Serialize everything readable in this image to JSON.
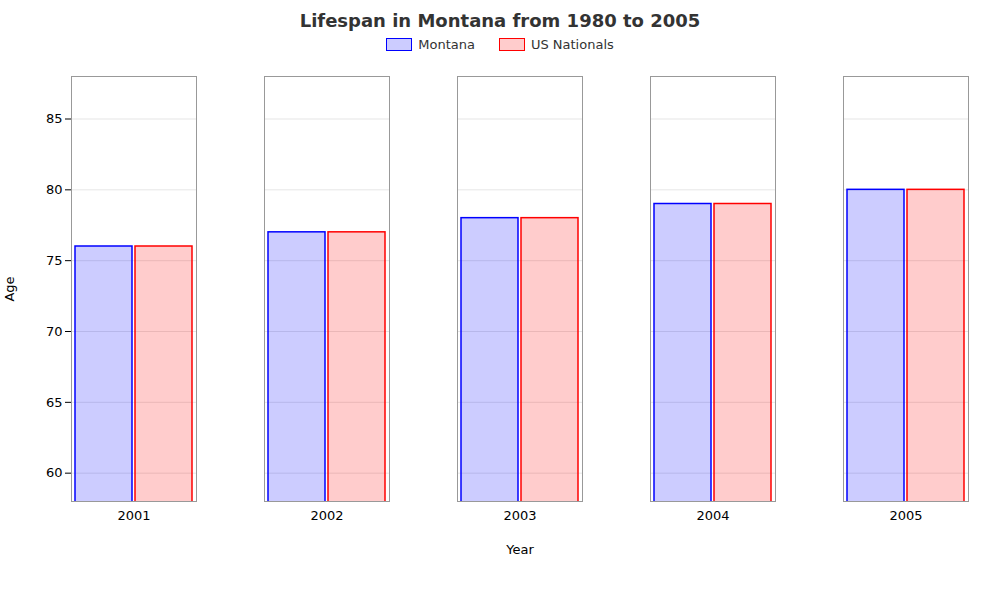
{
  "chart_data": {
    "type": "bar",
    "title": "Lifespan in Montana from 1980 to 2005",
    "xlabel": "Year",
    "ylabel": "Age",
    "categories": [
      "2001",
      "2002",
      "2003",
      "2004",
      "2005"
    ],
    "series": [
      {
        "name": "Montana",
        "color": "#0000ff",
        "values": [
          76,
          77,
          78,
          79,
          80
        ]
      },
      {
        "name": "US Nationals",
        "color": "#ff0000",
        "values": [
          76,
          77,
          78,
          79,
          80
        ]
      }
    ],
    "ylim": [
      58,
      88
    ],
    "yticks": [
      60,
      65,
      70,
      75,
      80,
      85
    ],
    "grid": true,
    "legend": "top"
  }
}
